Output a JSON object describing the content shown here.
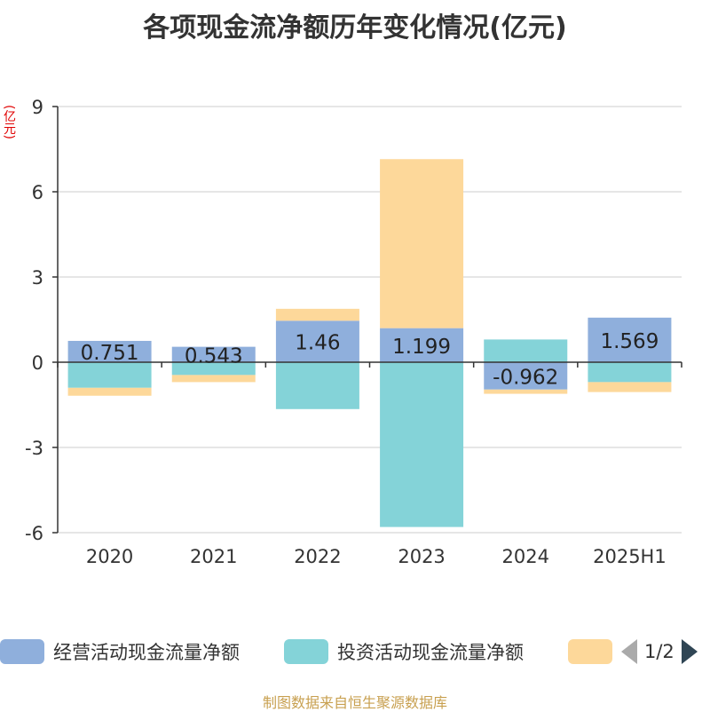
{
  "title": "各项现金流净额历年变化情况(亿元)",
  "unit": "(亿元)",
  "source": "制图数据来自恒生聚源数据库",
  "pager": {
    "text": "1/2"
  },
  "chart_data": {
    "type": "bar",
    "stacked": true,
    "categories": [
      "2020",
      "2021",
      "2022",
      "2023",
      "2024",
      "2025H1"
    ],
    "ylim": [
      -6,
      9
    ],
    "yticks": [
      9,
      6,
      3,
      0,
      -3,
      -6
    ],
    "grid": true,
    "legend_position": "bottom",
    "series": [
      {
        "name": "经营活动现金流量净额",
        "color": "#8fafdc",
        "values": [
          0.751,
          0.543,
          1.46,
          1.199,
          -0.962,
          1.569
        ],
        "labels": [
          "0.751",
          "0.543",
          "1.46",
          "1.199",
          "-0.962",
          "1.569"
        ]
      },
      {
        "name": "投资活动现金流量净额",
        "color": "#84d3d8",
        "values": [
          -0.9,
          -0.45,
          -1.65,
          -5.8,
          0.8,
          -0.7
        ]
      },
      {
        "name": "",
        "color": "#fdd89a",
        "values": [
          -0.28,
          -0.25,
          0.42,
          5.95,
          -0.15,
          -0.35
        ]
      }
    ]
  }
}
